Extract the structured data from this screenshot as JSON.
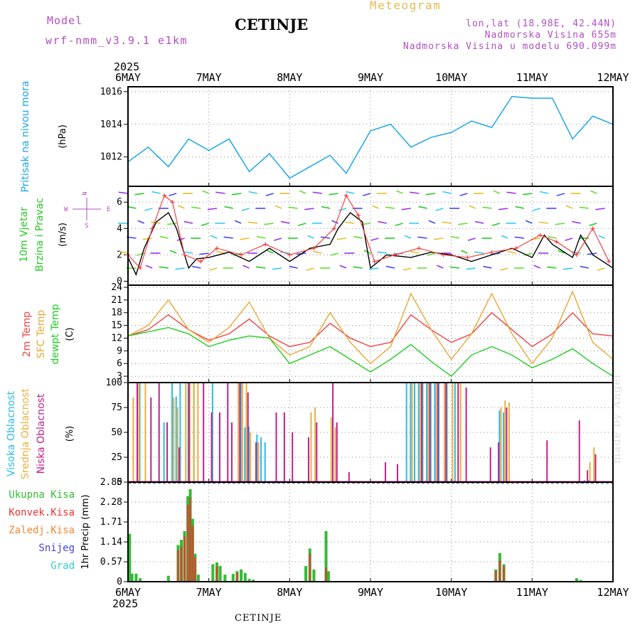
{
  "header": {
    "model_label": "Model",
    "model_name": "wrf-nmm_v3.9.1 e1km",
    "station": "CETINJE",
    "chart_kind": "Meteogram",
    "coords": "lon,lat (18.98E, 42.44N)",
    "elevation": "Nadmorska Visina 655m",
    "model_elevation": "Nadmorska Visina u modelu 690.099m"
  },
  "footer": {
    "station": "CETINJE"
  },
  "credit": "made by Angel",
  "colors": {
    "pressure": "#1aa7e6",
    "temp2m": "#ee4444",
    "sfc": "#e8a838",
    "dewpt": "#22cc22",
    "high_cloud": "#30b8e8",
    "mid_cloud": "#e8b040",
    "low_cloud": "#c0208c",
    "precip_total": "#33bb33",
    "precip_conv": "#ee3333",
    "precip_frozen": "#ee8833",
    "snow": "#4444dd",
    "graupel": "#33cccc",
    "wind_speed": "#000000",
    "wind_gust": "#ee4444"
  },
  "chart_data": {
    "type": "line",
    "x_labels": [
      "6MAY",
      "7MAY",
      "8MAY",
      "9MAY",
      "10MAY",
      "11MAY",
      "12MAY"
    ],
    "year_label": "2025",
    "panels": [
      {
        "id": "pressure",
        "ylabel": "Pritisak na nivou mora",
        "unit": "(hPa)",
        "yticks": [
          1012,
          1014,
          1016
        ],
        "ylim": [
          1010.2,
          1016.3
        ],
        "series": [
          {
            "name": "Pritisak na nivou mora",
            "color": "#1aa7e6",
            "x": [
              0,
              0.25,
              0.5,
              0.75,
              1.0,
              1.25,
              1.5,
              1.75,
              2.0,
              2.25,
              2.5,
              2.7,
              3.0,
              3.25,
              3.5,
              3.75,
              4.0,
              4.25,
              4.5,
              4.75,
              5.0,
              5.25,
              5.5,
              5.75,
              6.0
            ],
            "y": [
              1011.7,
              1012.6,
              1011.4,
              1013.1,
              1012.4,
              1013.1,
              1011.1,
              1012.2,
              1010.7,
              1011.4,
              1012.1,
              1011.0,
              1013.6,
              1014.0,
              1012.6,
              1013.2,
              1013.5,
              1014.2,
              1013.8,
              1015.7,
              1015.6,
              1015.6,
              1013.1,
              1014.5,
              1014.0
            ]
          }
        ]
      },
      {
        "id": "wind",
        "ylabel": "10m Vjetar",
        "ylabel2": "Brzina i Pravac",
        "unit": "(m/s)",
        "compass": [
          "N",
          "W",
          "E",
          "S"
        ],
        "yticks": [
          0,
          2,
          4,
          6
        ],
        "ylim": [
          -0.3,
          7.2
        ],
        "series": [
          {
            "name": "wind speed",
            "color": "#000000",
            "x": [
              0,
              0.1,
              0.2,
              0.35,
              0.5,
              0.6,
              0.75,
              0.85,
              1.0,
              1.25,
              1.5,
              1.75,
              2.0,
              2.25,
              2.5,
              2.6,
              2.75,
              2.9,
              3.0,
              3.2,
              3.5,
              3.75,
              4.0,
              4.25,
              4.5,
              4.75,
              5.0,
              5.15,
              5.25,
              5.5,
              5.6,
              5.75,
              6.0
            ],
            "y": [
              1.8,
              0.5,
              2.5,
              4.5,
              5.2,
              4.0,
              1.0,
              1.7,
              1.8,
              2.2,
              1.5,
              2.5,
              1.5,
              2.5,
              2.8,
              4.0,
              5.2,
              4.5,
              1.0,
              2.0,
              1.8,
              2.2,
              2.0,
              1.5,
              2.0,
              2.5,
              1.8,
              3.5,
              2.8,
              1.8,
              3.5,
              2.0,
              1.0
            ]
          },
          {
            "name": "wind gust",
            "color": "#ee4444",
            "x": [
              0,
              0.15,
              0.3,
              0.45,
              0.55,
              0.7,
              0.9,
              1.1,
              1.4,
              1.7,
              2.0,
              2.3,
              2.55,
              2.7,
              2.85,
              3.05,
              3.3,
              3.6,
              3.9,
              4.2,
              4.5,
              4.8,
              5.1,
              5.3,
              5.55,
              5.75,
              5.95
            ],
            "y": [
              2.0,
              1.0,
              4.0,
              6.5,
              6.0,
              2.0,
              1.5,
              2.5,
              2.0,
              2.8,
              2.0,
              2.5,
              4.0,
              6.5,
              5.0,
              1.5,
              2.0,
              2.5,
              2.0,
              1.8,
              2.2,
              2.5,
              3.5,
              3.0,
              2.0,
              4.0,
              1.5
            ]
          }
        ]
      },
      {
        "id": "temperature",
        "ylabels": [
          "2m Temp",
          "SFC Temp",
          "dewpt Temp"
        ],
        "unit": "(C)",
        "yticks": [
          3,
          6,
          9,
          12,
          15,
          18,
          21,
          24
        ],
        "ylim": [
          1.5,
          24.5
        ],
        "series": [
          {
            "name": "2m Temp",
            "color": "#ee4444",
            "x": [
              0,
              0.25,
              0.5,
              0.75,
              1.0,
              1.25,
              1.5,
              1.75,
              2.0,
              2.25,
              2.5,
              2.75,
              3.0,
              3.25,
              3.5,
              3.75,
              4.0,
              4.25,
              4.5,
              4.75,
              5.0,
              5.25,
              5.5,
              5.75,
              6.0
            ],
            "y": [
              12.5,
              14.0,
              17.5,
              14.0,
              11.5,
              13.0,
              16.5,
              12.5,
              10.0,
              11.0,
              15.5,
              12.0,
              10.0,
              11.0,
              17.5,
              14.0,
              11.0,
              13.0,
              18.0,
              14.0,
              10.0,
              13.0,
              18.0,
              13.0,
              12.5
            ]
          },
          {
            "name": "SFC Temp",
            "color": "#e8a838",
            "x": [
              0,
              0.25,
              0.5,
              0.75,
              1.0,
              1.25,
              1.5,
              1.75,
              2.0,
              2.25,
              2.5,
              2.75,
              3.0,
              3.25,
              3.5,
              3.75,
              4.0,
              4.25,
              4.5,
              4.75,
              5.0,
              5.25,
              5.5,
              5.75,
              6.0
            ],
            "y": [
              12.5,
              15.0,
              21.0,
              14.0,
              11.0,
              14.5,
              20.5,
              12.0,
              8.0,
              10.0,
              18.0,
              11.0,
              6.0,
              10.0,
              22.5,
              14.0,
              7.0,
              13.0,
              22.5,
              13.0,
              6.0,
              12.0,
              23.0,
              11.0,
              7.0
            ]
          },
          {
            "name": "dewpt Temp",
            "color": "#22cc22",
            "x": [
              0,
              0.25,
              0.5,
              0.75,
              1.0,
              1.25,
              1.5,
              1.75,
              2.0,
              2.25,
              2.5,
              2.75,
              3.0,
              3.25,
              3.5,
              3.75,
              4.0,
              4.25,
              4.5,
              4.75,
              5.0,
              5.25,
              5.5,
              5.75,
              6.0
            ],
            "y": [
              12.5,
              13.5,
              14.5,
              13.0,
              10.0,
              11.5,
              12.5,
              12.0,
              6.0,
              8.0,
              10.0,
              7.0,
              4.0,
              7.0,
              10.5,
              6.5,
              3.0,
              8.0,
              10.0,
              8.0,
              5.0,
              7.0,
              9.5,
              6.0,
              3.0
            ]
          }
        ]
      },
      {
        "id": "clouds",
        "ylabels": [
          "Visoka Oblacnost",
          "Srednja Oblacnost",
          "Niska Oblacnost"
        ],
        "unit": "(%)",
        "yticks": [
          0,
          25,
          50,
          75,
          100
        ],
        "ylim": [
          0,
          100
        ],
        "type": "bar",
        "series": [
          {
            "name": "Visoka Oblacnost",
            "color": "#30b8e8",
            "x": [
              0.15,
              0.45,
              0.55,
              0.6,
              0.65,
              0.75,
              0.82,
              1.05,
              1.4,
              1.45,
              1.5,
              1.6,
              1.65,
              1.7,
              3.45,
              3.5,
              3.55,
              3.6,
              3.65,
              3.7,
              3.75,
              3.8,
              3.85,
              3.95,
              4.05,
              4.6,
              4.65,
              5.65,
              5.7
            ],
            "y": [
              100,
              60,
              100,
              86,
              100,
              100,
              100,
              100,
              100,
              55,
              56,
              48,
              45,
              40,
              100,
              100,
              100,
              100,
              100,
              100,
              100,
              100,
              100,
              100,
              100,
              72,
              70,
              2,
              2
            ]
          },
          {
            "name": "Srednja Oblacnost",
            "color": "#e8b040",
            "x": [
              0.05,
              0.12,
              0.2,
              0.55,
              0.6,
              0.7,
              0.75,
              0.8,
              0.85,
              1.35,
              1.4,
              1.45,
              1.5,
              1.6,
              2.25,
              2.3,
              2.5,
              2.55,
              3.5,
              3.6,
              3.7,
              3.8,
              3.9,
              4.0,
              4.1,
              4.6,
              4.65,
              4.7,
              5.7,
              5.75
            ],
            "y": [
              85,
              100,
              100,
              85,
              75,
              100,
              100,
              100,
              100,
              100,
              100,
              100,
              50,
              40,
              70,
              75,
              65,
              55,
              100,
              100,
              100,
              100,
              100,
              100,
              100,
              75,
              82,
              80,
              20,
              35
            ]
          },
          {
            "name": "Niska Oblacnost",
            "color": "#c0208c",
            "x": [
              0.08,
              0.25,
              0.35,
              0.45,
              0.6,
              0.72,
              0.9,
              1.0,
              1.1,
              1.2,
              1.25,
              1.35,
              1.45,
              1.55,
              1.8,
              1.9,
              2.0,
              2.2,
              2.3,
              2.5,
              2.55,
              2.7,
              3.15,
              3.3,
              3.6,
              3.7,
              3.8,
              3.9,
              4.05,
              4.15,
              4.45,
              4.55,
              4.65,
              5.15,
              5.55,
              5.65,
              5.75
            ],
            "y": [
              100,
              85,
              100,
              60,
              35,
              100,
              100,
              70,
              70,
              100,
              60,
              100,
              90,
              40,
              70,
              70,
              50,
              45,
              60,
              100,
              60,
              10,
              20,
              18,
              100,
              100,
              100,
              100,
              100,
              95,
              35,
              40,
              75,
              42,
              62,
              12,
              28
            ]
          }
        ]
      },
      {
        "id": "precip",
        "legend": [
          "Ukupna Kisa",
          "Konvek.Kisa",
          "Zaledj.Kisa",
          "Snijeg",
          "Grad"
        ],
        "ylabel": "1hr Precip (mm)",
        "yticks": [
          0,
          0.57,
          1.14,
          1.71,
          2.28,
          2.85
        ],
        "ylim": [
          0,
          2.85
        ],
        "type": "bar",
        "series": [
          {
            "name": "Ukupna Kisa",
            "color": "#33bb33",
            "x": [
              0.02,
              0.05,
              0.1,
              0.15,
              0.5,
              0.62,
              0.66,
              0.7,
              0.74,
              0.77,
              0.8,
              0.83,
              0.87,
              1.05,
              1.1,
              1.14,
              1.2,
              1.3,
              1.35,
              1.4,
              1.45,
              1.5,
              1.55,
              2.2,
              2.25,
              2.3,
              2.45,
              2.48,
              4.55,
              4.6,
              4.65,
              5.55,
              5.6
            ],
            "y": [
              1.37,
              0.23,
              0.23,
              0.1,
              0.17,
              1.05,
              1.2,
              1.45,
              2.45,
              2.65,
              1.8,
              0.8,
              0.2,
              0.5,
              0.55,
              0.45,
              0.2,
              0.22,
              0.3,
              0.35,
              0.25,
              0.08,
              0.06,
              0.45,
              0.95,
              0.35,
              1.45,
              0.3,
              0.35,
              0.82,
              0.5,
              0.1,
              0.05
            ]
          },
          {
            "name": "Konvek.Kisa",
            "color": "#ee3333",
            "x": [
              0.62,
              0.66,
              0.7,
              0.74,
              0.77,
              0.8,
              0.83,
              1.1,
              1.35,
              2.25,
              2.45,
              4.55,
              4.6,
              4.65
            ],
            "y": [
              0.9,
              1.0,
              1.3,
              2.2,
              2.4,
              1.6,
              0.7,
              0.45,
              0.25,
              0.8,
              0.4,
              0.3,
              0.6,
              0.45
            ]
          }
        ]
      }
    ]
  }
}
